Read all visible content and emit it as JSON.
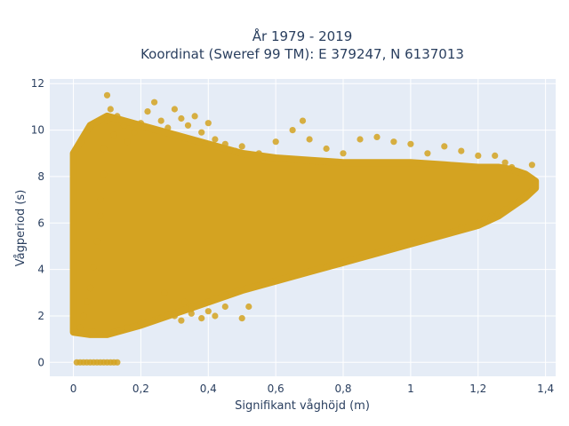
{
  "chart_data": {
    "type": "scatter",
    "title_lines": [
      "År 1979 - 2019",
      "Koordinat (Sweref 99 TM): E 379247, N 6137013"
    ],
    "xlabel": "Signifikant våghöjd (m)",
    "ylabel": "Vågperiod (s)",
    "xlim": [
      -0.07,
      1.43
    ],
    "ylim": [
      -0.6,
      12.2
    ],
    "x_ticks": [
      0,
      0.2,
      0.4,
      0.6,
      0.8,
      1,
      1.2,
      1.4
    ],
    "x_tick_labels": [
      "0",
      "0,2",
      "0,4",
      "0,6",
      "0,8",
      "1",
      "1,2",
      "1,4"
    ],
    "y_ticks": [
      0,
      2,
      4,
      6,
      8,
      10,
      12
    ],
    "y_tick_labels": [
      "0",
      "2",
      "4",
      "6",
      "8",
      "10",
      "12"
    ],
    "grid": true,
    "legend": "none",
    "marker_color": "#D4A321",
    "plot_background": "#E5ECF6",
    "points": [
      [
        0.02,
        1.5
      ],
      [
        0.03,
        2.0
      ],
      [
        0.04,
        2.6
      ],
      [
        0.05,
        3.2
      ],
      [
        0.06,
        1.3
      ],
      [
        0.06,
        4.1
      ],
      [
        0.07,
        5.2
      ],
      [
        0.08,
        6.3
      ],
      [
        0.08,
        7.0
      ],
      [
        0.09,
        8.1
      ],
      [
        0.09,
        9.2
      ],
      [
        0.1,
        10.4
      ],
      [
        0.1,
        11.5
      ],
      [
        0.11,
        10.9
      ],
      [
        0.12,
        9.8
      ],
      [
        0.13,
        10.6
      ],
      [
        0.15,
        10.2
      ],
      [
        0.16,
        9.5
      ],
      [
        0.18,
        9.9
      ],
      [
        0.2,
        10.3
      ],
      [
        0.22,
        10.8
      ],
      [
        0.24,
        11.2
      ],
      [
        0.26,
        10.4
      ],
      [
        0.28,
        10.1
      ],
      [
        0.3,
        10.9
      ],
      [
        0.32,
        10.5
      ],
      [
        0.34,
        10.2
      ],
      [
        0.36,
        10.6
      ],
      [
        0.38,
        9.9
      ],
      [
        0.4,
        10.3
      ],
      [
        0.42,
        9.6
      ],
      [
        0.45,
        9.4
      ],
      [
        0.48,
        9.1
      ],
      [
        0.5,
        9.3
      ],
      [
        0.55,
        9.0
      ],
      [
        0.6,
        9.5
      ],
      [
        0.65,
        10.0
      ],
      [
        0.68,
        10.4
      ],
      [
        0.7,
        9.6
      ],
      [
        0.75,
        9.2
      ],
      [
        0.8,
        9.0
      ],
      [
        0.85,
        9.6
      ],
      [
        0.9,
        9.7
      ],
      [
        0.95,
        9.5
      ],
      [
        1.0,
        9.4
      ],
      [
        1.05,
        9.0
      ],
      [
        1.1,
        9.3
      ],
      [
        1.15,
        9.1
      ],
      [
        1.2,
        8.9
      ],
      [
        1.25,
        8.9
      ],
      [
        1.28,
        8.6
      ],
      [
        1.3,
        8.4
      ],
      [
        1.33,
        8.1
      ],
      [
        1.36,
        8.5
      ],
      [
        1.37,
        7.7
      ],
      [
        1.36,
        7.4
      ],
      [
        1.34,
        7.1
      ],
      [
        1.32,
        6.9
      ],
      [
        1.3,
        6.8
      ],
      [
        1.28,
        6.6
      ],
      [
        1.26,
        6.4
      ],
      [
        1.24,
        6.3
      ],
      [
        1.22,
        6.2
      ],
      [
        1.2,
        6.0
      ],
      [
        1.15,
        5.8
      ],
      [
        1.1,
        5.5
      ],
      [
        1.05,
        5.3
      ],
      [
        1.0,
        5.1
      ],
      [
        0.95,
        4.9
      ],
      [
        0.9,
        4.7
      ],
      [
        0.85,
        4.5
      ],
      [
        0.8,
        4.3
      ],
      [
        0.75,
        4.1
      ],
      [
        0.7,
        3.9
      ],
      [
        0.65,
        3.7
      ],
      [
        0.6,
        3.5
      ],
      [
        0.55,
        3.3
      ],
      [
        0.5,
        3.1
      ],
      [
        0.45,
        2.9
      ],
      [
        0.4,
        2.6
      ],
      [
        0.35,
        2.3
      ],
      [
        0.3,
        2.1
      ],
      [
        0.25,
        1.9
      ],
      [
        0.2,
        1.7
      ],
      [
        0.16,
        1.5
      ],
      [
        0.12,
        1.3
      ],
      [
        0.08,
        1.2
      ],
      [
        0.05,
        1.3
      ],
      [
        0.26,
        1.9
      ],
      [
        0.3,
        2.0
      ],
      [
        0.32,
        1.8
      ],
      [
        0.35,
        2.1
      ],
      [
        0.38,
        1.9
      ],
      [
        0.4,
        2.2
      ],
      [
        0.42,
        2.0
      ],
      [
        0.45,
        2.4
      ],
      [
        0.5,
        1.9
      ],
      [
        0.52,
        2.4
      ],
      [
        0.27,
        3.0
      ],
      [
        0.33,
        2.6
      ],
      [
        0.01,
        0
      ],
      [
        0.02,
        0
      ],
      [
        0.03,
        0
      ],
      [
        0.04,
        0
      ],
      [
        0.05,
        0
      ],
      [
        0.06,
        0
      ],
      [
        0.07,
        0
      ],
      [
        0.08,
        0
      ],
      [
        0.09,
        0
      ],
      [
        0.1,
        0
      ],
      [
        0.11,
        0
      ],
      [
        0.12,
        0
      ],
      [
        0.13,
        0
      ]
    ],
    "density_band": {
      "x": [
        0.0,
        0.05,
        0.1,
        0.2,
        0.3,
        0.4,
        0.5,
        0.6,
        0.7,
        0.8,
        0.9,
        1.0,
        1.1,
        1.2,
        1.26,
        1.3,
        1.34,
        1.37
      ],
      "y_low": [
        1.3,
        1.2,
        1.2,
        1.6,
        2.1,
        2.6,
        3.1,
        3.5,
        3.9,
        4.3,
        4.7,
        5.1,
        5.5,
        5.9,
        6.3,
        6.7,
        7.1,
        7.5
      ],
      "y_high": [
        9.0,
        10.2,
        10.6,
        10.2,
        9.8,
        9.4,
        9.0,
        8.8,
        8.7,
        8.6,
        8.6,
        8.6,
        8.5,
        8.4,
        8.4,
        8.3,
        8.1,
        7.8
      ]
    }
  }
}
